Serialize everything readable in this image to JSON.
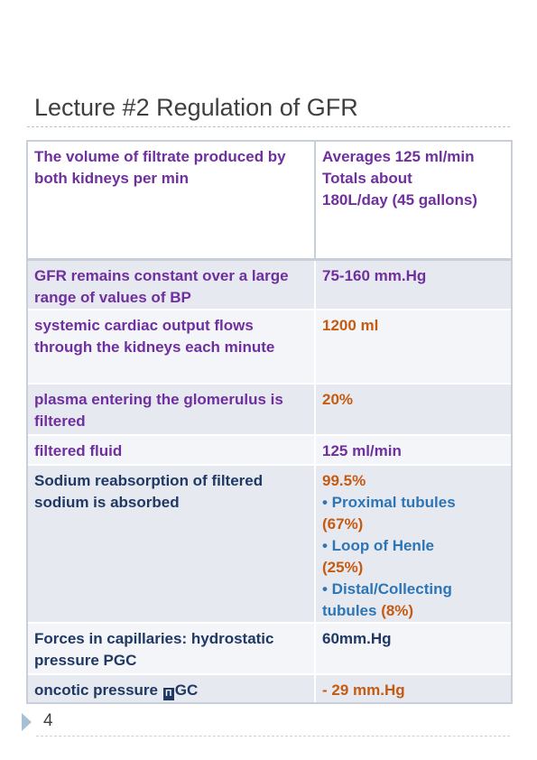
{
  "title": "Lecture #2 Regulation of GFR",
  "rows": [
    {
      "left": "The volume of filtrate produced by both kidneys per min",
      "right_lines": [
        "Averages 125 ml/min",
        "Totals about",
        "180L/day (45 gallons)"
      ]
    },
    {
      "left": "GFR remains constant over a large range of values of BP",
      "right": "75-160 mm.Hg"
    },
    {
      "left": "systemic cardiac output flows through the kidneys each minute",
      "right": "1200 ml"
    },
    {
      "left": "plasma entering the glomerulus is filtered",
      "right": "20%"
    },
    {
      "left": "filtered fluid",
      "right": "125 ml/min"
    },
    {
      "left": "Sodium reabsorption of filtered sodium is absorbed",
      "right_head": "99.5%",
      "bullets": [
        {
          "text": "•  Proximal tubules",
          "pct": "(67%)"
        },
        {
          "text": "•  Loop of Henle",
          "pct": "(25%)"
        },
        {
          "text": "•  Distal/Collecting tubules",
          "pct": "(8%)"
        }
      ]
    },
    {
      "left": "Forces in capillaries: hydrostatic pressure  PGC",
      "right": "60mm.Hg"
    },
    {
      "left_prefix": "oncotic pressure ",
      "glyph": "Π",
      "left_suffix": "GC",
      "right": "- 29 mm.Hg"
    }
  ],
  "page_number": "4",
  "colors": {
    "purple": "#6f2f9f",
    "orange": "#c55a11",
    "blue": "#2e75b6",
    "dark_blue": "#1f3864",
    "row_odd": "#e6eaf0",
    "row_even": "#f3f5f8"
  }
}
